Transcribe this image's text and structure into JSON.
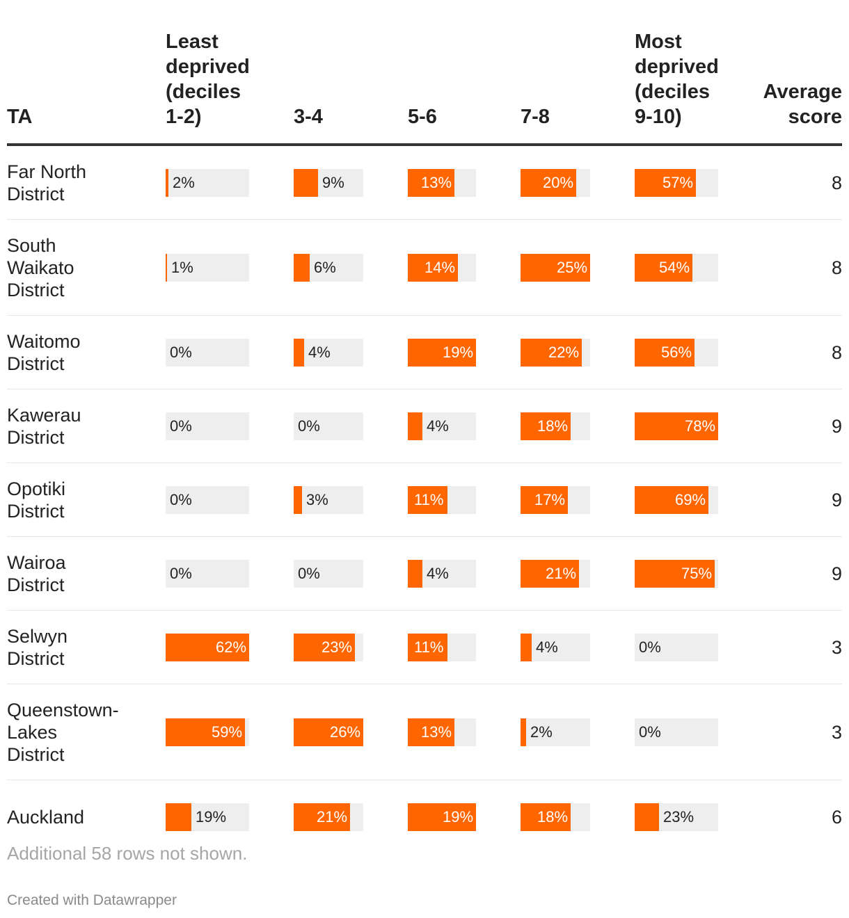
{
  "chart_data": {
    "type": "table",
    "columns": [
      "TA",
      "Least deprived (deciles 1-2)",
      "3-4",
      "5-6",
      "7-8",
      "Most deprived (deciles 9-10)",
      "Average score"
    ],
    "header": {
      "ta": "TA",
      "c0": [
        "Least",
        "deprived",
        "(deciles",
        "1-2)"
      ],
      "c1": "3-4",
      "c2": "5-6",
      "c3": "7-8",
      "c4": [
        "Most",
        "deprived",
        "(deciles",
        "9-10)"
      ],
      "avg": [
        "Average",
        "score"
      ]
    },
    "rows": [
      {
        "name": [
          "Far North",
          "District"
        ],
        "values": [
          2,
          9,
          13,
          20,
          57
        ],
        "avg": 8
      },
      {
        "name": [
          "South",
          "Waikato",
          "District"
        ],
        "values": [
          1,
          6,
          14,
          25,
          54
        ],
        "avg": 8
      },
      {
        "name": [
          "Waitomo",
          "District"
        ],
        "values": [
          0,
          4,
          19,
          22,
          56
        ],
        "avg": 8
      },
      {
        "name": [
          "Kawerau",
          "District"
        ],
        "values": [
          0,
          0,
          4,
          18,
          78
        ],
        "avg": 9
      },
      {
        "name": [
          "Opotiki",
          "District"
        ],
        "values": [
          0,
          3,
          11,
          17,
          69
        ],
        "avg": 9
      },
      {
        "name": [
          "Wairoa",
          "District"
        ],
        "values": [
          0,
          0,
          4,
          21,
          75
        ],
        "avg": 9
      },
      {
        "name": [
          "Selwyn",
          "District"
        ],
        "values": [
          62,
          23,
          11,
          4,
          0
        ],
        "avg": 3
      },
      {
        "name": [
          "Queenstown-",
          "Lakes",
          "District"
        ],
        "values": [
          59,
          26,
          13,
          2,
          0
        ],
        "avg": 3
      },
      {
        "name": [
          "Auckland"
        ],
        "values": [
          19,
          21,
          19,
          18,
          23
        ],
        "avg": 6
      }
    ],
    "bar_max": [
      62,
      26,
      19,
      25,
      78
    ],
    "unit": "%"
  },
  "colors": {
    "bar": "#ff6600",
    "track": "#eeeeee",
    "text": "#222222",
    "muted": "#a6a6a6"
  },
  "footer": {
    "note": "Additional 58 rows not shown.",
    "credit": "Created with Datawrapper"
  }
}
